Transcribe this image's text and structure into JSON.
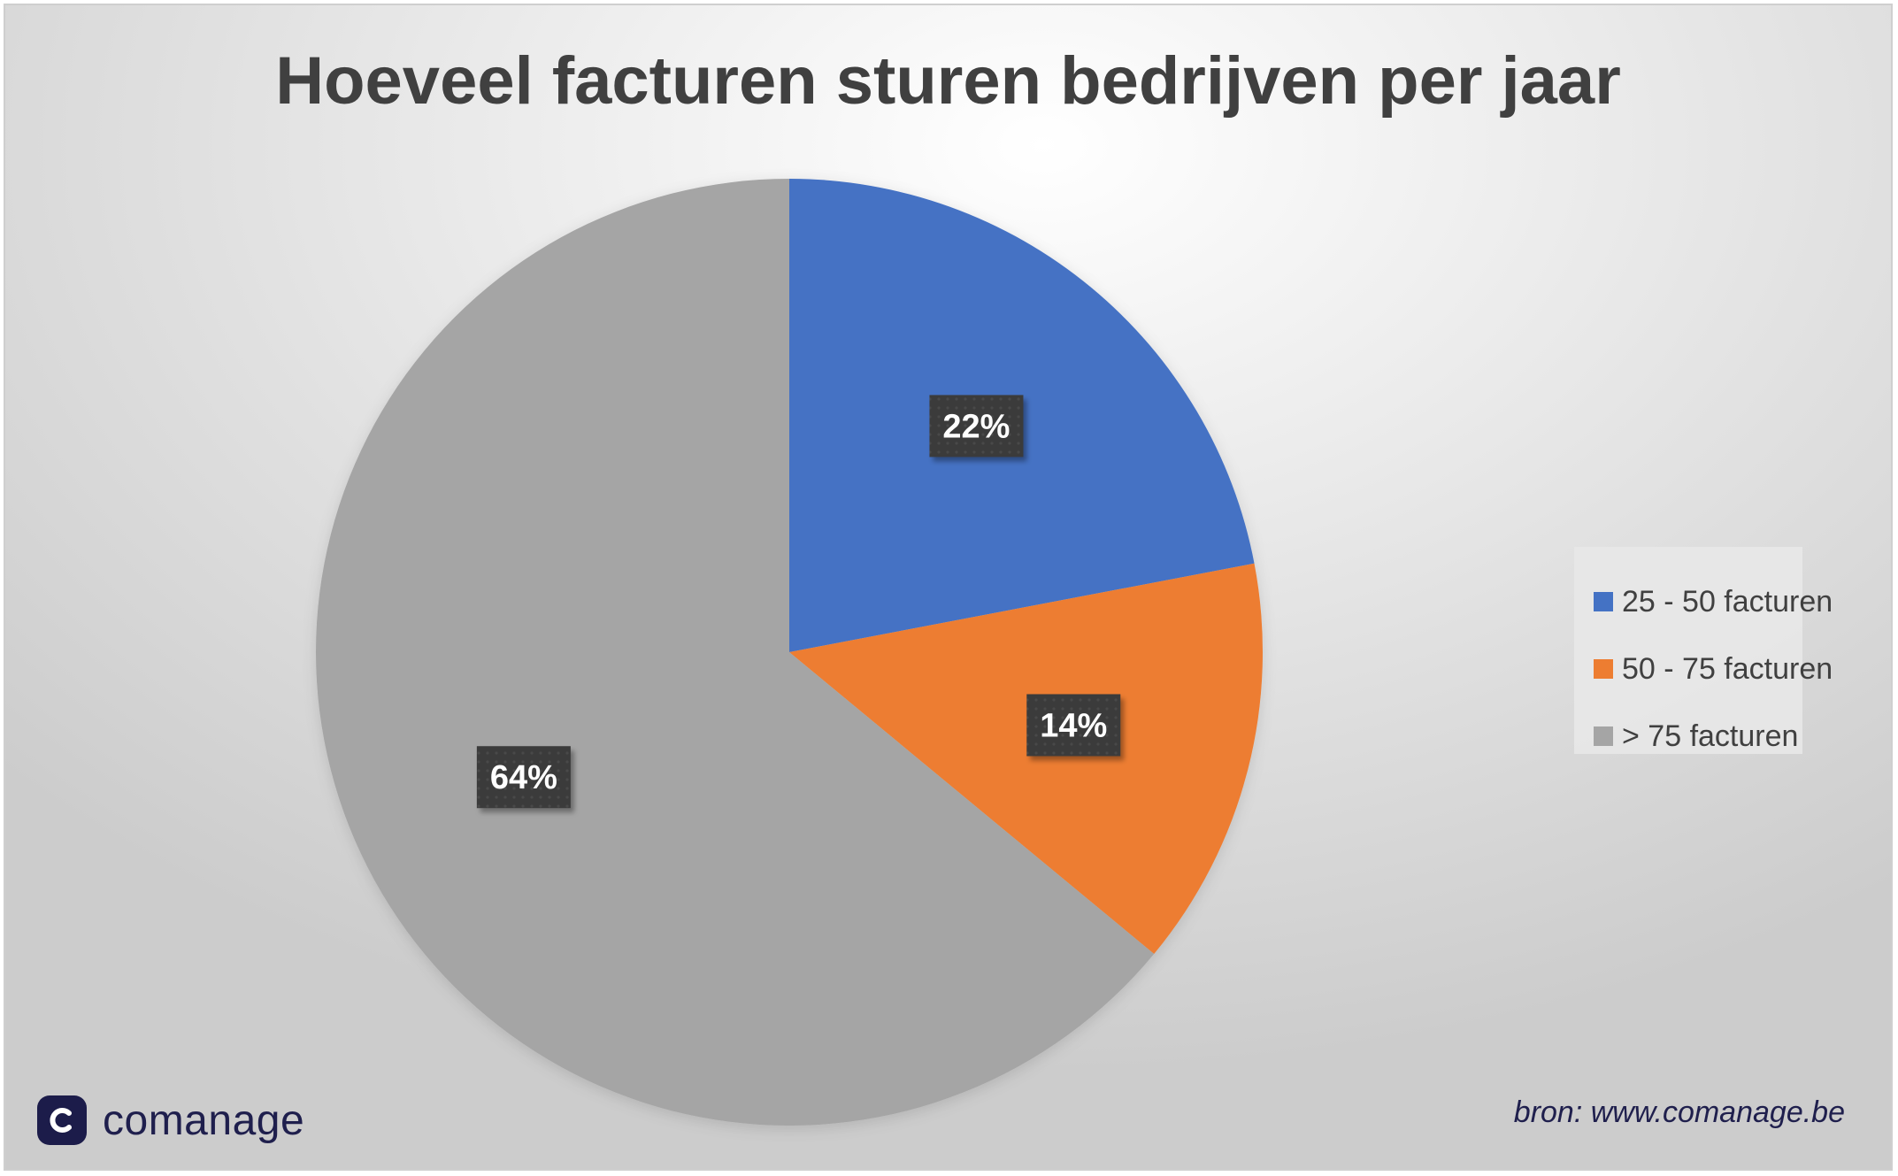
{
  "chart_data": {
    "type": "pie",
    "title": "Hoeveel facturen sturen bedrijven per jaar",
    "categories": [
      "25 - 50 facturen",
      "50 - 75 facturen",
      "> 75 facturen"
    ],
    "values": [
      22,
      14,
      64
    ],
    "value_labels": [
      "22%",
      "14%",
      "64%"
    ],
    "colors": [
      "#4472C4",
      "#ED7D31",
      "#A5A5A5"
    ],
    "start_angle_deg": 0,
    "direction": "clockwise",
    "legend_position": "right"
  },
  "legend": {
    "items": [
      {
        "label": "25 - 50 facturen",
        "color": "#4472C4"
      },
      {
        "label": "50 - 75 facturen",
        "color": "#ED7D31"
      },
      {
        "label": "> 75 facturen",
        "color": "#A5A5A5"
      }
    ]
  },
  "brand": {
    "name": "comanage",
    "icon": "comanage-logo-icon"
  },
  "source": {
    "text": "bron: www.comanage.be"
  }
}
